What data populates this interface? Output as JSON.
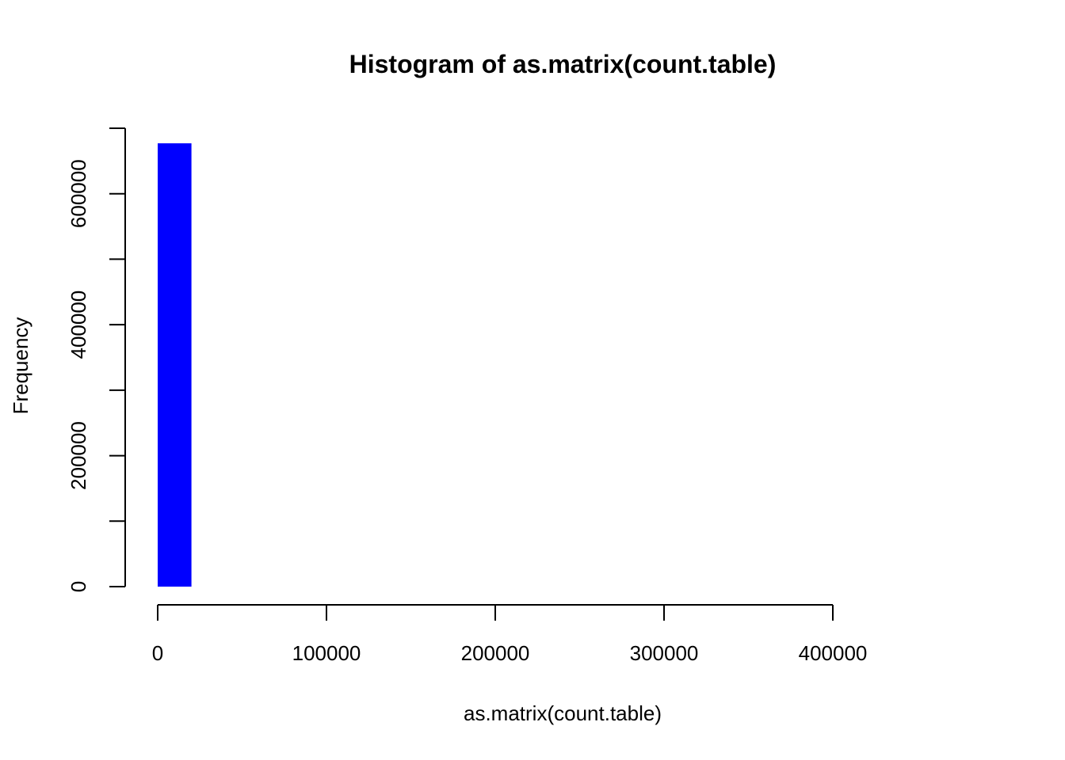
{
  "chart_data": {
    "type": "bar",
    "title": "Histogram of as.matrix(count.table)",
    "xlabel": "as.matrix(count.table)",
    "ylabel": "Frequency",
    "bins": [
      {
        "x_start": 0,
        "x_end": 20000,
        "count": 677000
      }
    ],
    "x_ticks": [
      0,
      100000,
      200000,
      300000,
      400000
    ],
    "x_tick_labels": [
      "0",
      "100000",
      "200000",
      "300000",
      "400000"
    ],
    "y_ticks": [
      0,
      100000,
      200000,
      300000,
      400000,
      500000,
      600000,
      700000
    ],
    "y_tick_labels": [
      "0",
      "",
      "200000",
      "",
      "400000",
      "",
      "600000",
      ""
    ],
    "xlim": [
      0,
      400000
    ],
    "ylim": [
      0,
      700000
    ],
    "bar_color": "#0000ff",
    "grid": false,
    "legend": "none"
  }
}
